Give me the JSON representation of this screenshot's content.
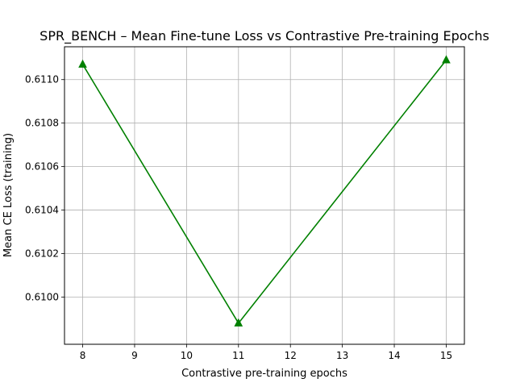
{
  "chart_data": {
    "type": "line",
    "title": "SPR_BENCH – Mean Fine-tune Loss vs Contrastive Pre-training Epochs",
    "xlabel": "Contrastive pre-training epochs",
    "ylabel": "Mean CE Loss (training)",
    "x": [
      8,
      11,
      15
    ],
    "series": [
      {
        "values": [
          0.61107,
          0.60988,
          0.61109
        ],
        "color": "#008000",
        "marker": "triangle-up"
      }
    ],
    "xlim": [
      7.65,
      15.35
    ],
    "ylim": [
      0.609783,
      0.611151
    ],
    "xticks": [
      "8",
      "9",
      "10",
      "11",
      "12",
      "13",
      "14",
      "15"
    ],
    "yticks": [
      "0.6100",
      "0.6102",
      "0.6104",
      "0.6106",
      "0.6108",
      "0.6110"
    ],
    "grid": true
  }
}
